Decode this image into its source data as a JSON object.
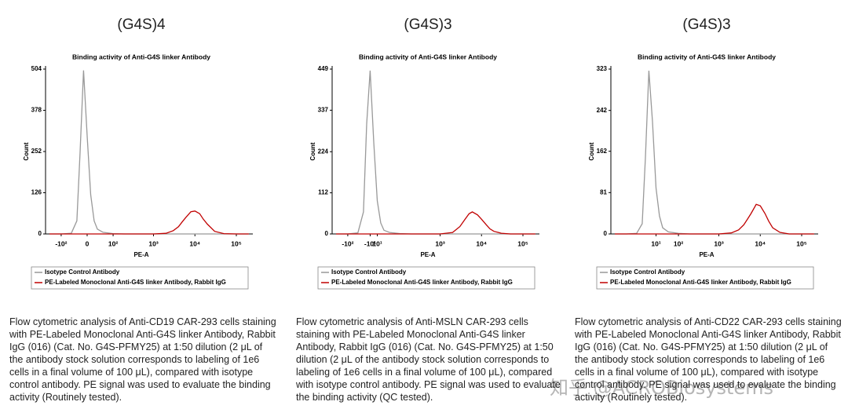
{
  "chart_data": [
    {
      "type": "line",
      "heading": "(G4S)4",
      "title": "Binding activity of Anti-G4S linker Antibody",
      "x_label": "PE-A",
      "y_label": "Count",
      "xscale": "asinh",
      "xlim": [
        -250,
        250000
      ],
      "ylim": [
        0,
        504
      ],
      "xticks": [
        {
          "value": -100,
          "label": "-10²"
        },
        {
          "value": 0,
          "label": "0"
        },
        {
          "value": 100,
          "label": "10²"
        },
        {
          "value": 1000,
          "label": "10³"
        },
        {
          "value": 10000,
          "label": "10⁴"
        },
        {
          "value": 100000,
          "label": "10⁵"
        }
      ],
      "yticks": [
        0,
        126,
        252,
        378,
        504
      ],
      "x": [
        -200,
        -100,
        -50,
        -30,
        -20,
        -10,
        0,
        10,
        20,
        30,
        50,
        100,
        200,
        500,
        1000,
        2000,
        3000,
        4000,
        5000,
        6000,
        8000,
        10000,
        13000,
        16000,
        20000,
        30000,
        50000,
        100000,
        200000
      ],
      "series": [
        {
          "name": "Isotype Control Antibody",
          "color": "#999999",
          "values": [
            0,
            0,
            2,
            40,
            250,
            500,
            300,
            120,
            40,
            15,
            5,
            1,
            0,
            0,
            0,
            0,
            0,
            0,
            0,
            0,
            0,
            0,
            0,
            0,
            0,
            0,
            0,
            0,
            0
          ]
        },
        {
          "name": "PE-Labeled Monoclonal Anti-G4S linker Antibody, Rabbit IgG",
          "color": "#c00000",
          "values": [
            0,
            0,
            0,
            0,
            0,
            0,
            0,
            0,
            0,
            0,
            0,
            0,
            0,
            0,
            0,
            2,
            10,
            22,
            38,
            50,
            68,
            70,
            62,
            45,
            30,
            8,
            1,
            0,
            0
          ]
        }
      ],
      "caption": "Flow cytometric analysis of Anti-CD19 CAR-293 cells staining with PE-Labeled Monoclonal Anti-G4S linker Antibody, Rabbit IgG (016) (Cat. No. G4S-PFMY25) at 1:50 dilution (2 μL of the antibody stock solution corresponds to labeling of 1e6 cells in a final volume of 100 μL), compared with isotype control antibody. PE signal was used to evaluate the binding activity (Routinely tested)."
    },
    {
      "type": "line",
      "heading": "(G4S)3",
      "title": "Binding activity of Anti-G4S linker Antibody",
      "x_label": "PE-A",
      "y_label": "Count",
      "xscale": "asinh",
      "xlim": [
        -250,
        250000
      ],
      "ylim": [
        0,
        449
      ],
      "xticks": [
        {
          "value": -100,
          "label": "-10²"
        },
        {
          "value": -10,
          "label": "-10¹"
        },
        {
          "value": 10,
          "label": "10¹"
        },
        {
          "value": 1000,
          "label": "10³"
        },
        {
          "value": 10000,
          "label": "10⁴"
        },
        {
          "value": 100000,
          "label": "10⁵"
        }
      ],
      "yticks": [
        0,
        112,
        224,
        337,
        449
      ],
      "x": [
        -200,
        -100,
        -50,
        -30,
        -20,
        -10,
        0,
        10,
        20,
        30,
        50,
        100,
        200,
        500,
        1000,
        2000,
        3000,
        4000,
        5000,
        6000,
        8000,
        10000,
        13000,
        16000,
        20000,
        30000,
        50000,
        100000,
        200000
      ],
      "series": [
        {
          "name": "Isotype Control Antibody",
          "color": "#999999",
          "values": [
            0,
            0,
            3,
            60,
            300,
            445,
            250,
            90,
            30,
            10,
            4,
            1,
            0,
            0,
            0,
            0,
            0,
            0,
            0,
            0,
            0,
            0,
            0,
            0,
            0,
            0,
            0,
            0,
            0
          ]
        },
        {
          "name": "PE-Labeled Monoclonal Anti-G4S linker Antibody, Rabbit IgG",
          "color": "#c00000",
          "values": [
            0,
            0,
            0,
            0,
            0,
            0,
            0,
            0,
            0,
            0,
            0,
            0,
            0,
            0,
            0,
            4,
            20,
            40,
            55,
            60,
            52,
            40,
            25,
            14,
            7,
            2,
            0,
            0,
            0
          ]
        }
      ],
      "caption": "Flow cytometric analysis of Anti-MSLN CAR-293 cells staining with PE-Labeled Monoclonal Anti-G4S linker Antibody, Rabbit IgG (016) (Cat. No. G4S-PFMY25) at 1:50 dilution (2 μL of the antibody stock solution corresponds to labeling of 1e6 cells in a final volume of 100 μL), compared with isotype control antibody. PE signal was used to evaluate the binding activity (QC tested)."
    },
    {
      "type": "line",
      "heading": "(G4S)3",
      "title": "Binding activity of Anti-G4S linker Antibody",
      "x_label": "PE-A",
      "y_label": "Count",
      "xscale": "asinh",
      "xlim": [
        -250,
        250000
      ],
      "ylim": [
        0,
        323
      ],
      "xticks": [
        {
          "value": 10,
          "label": "10¹"
        },
        {
          "value": 100,
          "label": "10²"
        },
        {
          "value": 1000,
          "label": "10³"
        },
        {
          "value": 10000,
          "label": "10⁴"
        },
        {
          "value": 100000,
          "label": "10⁵"
        }
      ],
      "yticks": [
        0,
        81,
        162,
        242,
        323
      ],
      "x": [
        -200,
        -100,
        -50,
        -30,
        -20,
        -10,
        0,
        10,
        20,
        30,
        50,
        100,
        200,
        500,
        1000,
        2000,
        3000,
        4000,
        5000,
        6000,
        8000,
        10000,
        13000,
        16000,
        20000,
        30000,
        50000,
        100000,
        200000
      ],
      "series": [
        {
          "name": "Isotype Control Antibody",
          "color": "#999999",
          "values": [
            0,
            0,
            1,
            20,
            150,
            320,
            220,
            90,
            35,
            12,
            4,
            1,
            0,
            0,
            0,
            0,
            0,
            0,
            0,
            0,
            0,
            0,
            0,
            0,
            0,
            0,
            0,
            0,
            0
          ]
        },
        {
          "name": "PE-Labeled Monoclonal Anti-G4S linker Antibody, Rabbit IgG",
          "color": "#c00000",
          "values": [
            0,
            0,
            0,
            0,
            0,
            0,
            0,
            0,
            0,
            0,
            0,
            0,
            0,
            0,
            0,
            2,
            8,
            18,
            30,
            40,
            58,
            55,
            40,
            25,
            12,
            3,
            0,
            0,
            0
          ]
        }
      ],
      "caption": "Flow cytometric analysis of Anti-CD22 CAR-293 cells staining with PE-Labeled Monoclonal Anti-G4S linker Antibody, Rabbit IgG (016) (Cat. No. G4S-PFMY25) at 1:50 dilution (2 μL of the antibody stock solution corresponds to labeling of 1e6 cells in a final volume of 100 μL), compared with isotype control antibody. PE signal was used to evaluate the binding activity (Routinely tested)."
    }
  ],
  "watermark": "知乎 @ACROBiosystems"
}
